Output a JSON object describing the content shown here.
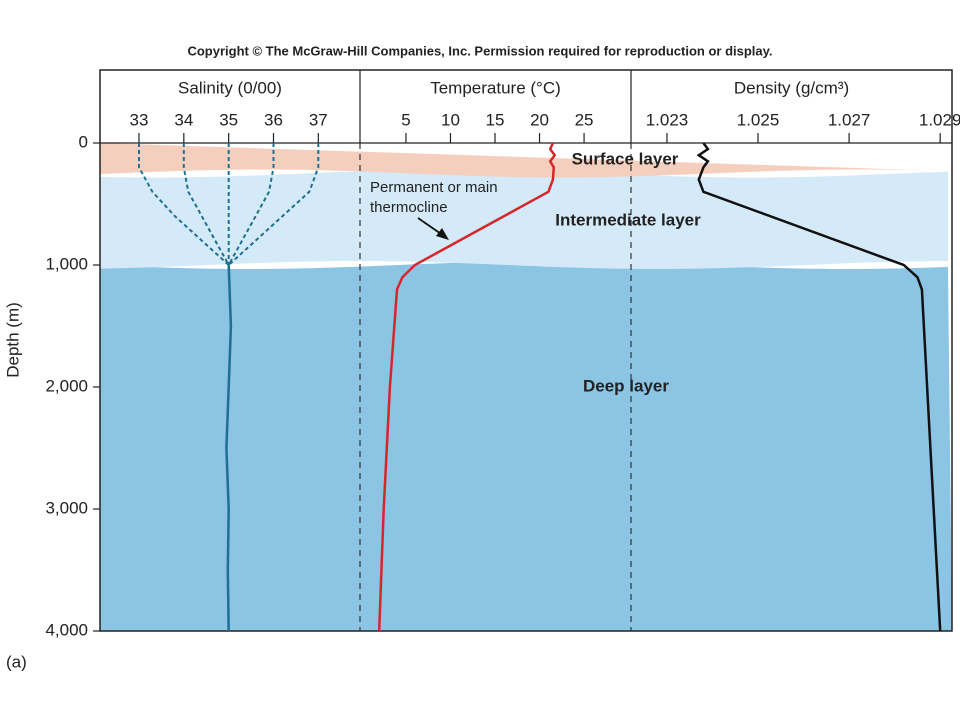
{
  "copyright": "Copyright © The McGraw-Hill Companies, Inc. Permission required for reproduction or display.",
  "panel_label": "(a)",
  "layers": [
    {
      "name": "Deep layer",
      "top": 1000,
      "bottom": 4000,
      "color": "#8cc4e3"
    },
    {
      "name": "Intermediate layer",
      "top": 250,
      "bottom": 1000,
      "color": "#d5eaf8"
    },
    {
      "name": "Surface layer",
      "top": 0,
      "bottom": 250,
      "color": "#f5cfbe"
    }
  ],
  "annotation": {
    "lines": [
      "Permanent or main",
      "thermocline"
    ]
  },
  "chart_data": [
    {
      "type": "line",
      "title": "Salinity (0/00)",
      "ylabel": "Depth (m)",
      "xlim": [
        32.13,
        37.93
      ],
      "xticks": [
        33,
        34,
        35,
        36,
        37
      ],
      "ylim": [
        0,
        4000
      ],
      "yticks": [
        0,
        {
          "value": 1000,
          "label": "1,000"
        },
        {
          "value": 2000,
          "label": "2,000"
        },
        {
          "value": 3000,
          "label": "3,000"
        },
        {
          "value": 4000,
          "label": "4,000"
        }
      ],
      "series": [
        {
          "color": "#1f6f94",
          "style": "dashed",
          "depth": [
            0,
            200,
            400,
            600,
            800,
            1000
          ],
          "values": [
            33,
            33,
            33.3,
            33.8,
            34.4,
            35
          ]
        },
        {
          "color": "#1f6f94",
          "style": "dashed",
          "depth": [
            0,
            200,
            400,
            600,
            800,
            1000
          ],
          "values": [
            34,
            34,
            34.1,
            34.4,
            34.7,
            35
          ]
        },
        {
          "color": "#1f6f94",
          "style": "dashed",
          "depth": [
            0,
            200,
            400,
            600,
            800,
            1000
          ],
          "values": [
            35,
            35,
            35,
            35,
            35,
            35
          ]
        },
        {
          "color": "#1f6f94",
          "style": "dashed",
          "depth": [
            0,
            200,
            400,
            600,
            800,
            1000
          ],
          "values": [
            36,
            36,
            35.9,
            35.6,
            35.3,
            35
          ]
        },
        {
          "color": "#1f6f94",
          "style": "dashed",
          "depth": [
            0,
            200,
            400,
            600,
            800,
            1000
          ],
          "values": [
            37,
            37,
            36.8,
            36.2,
            35.6,
            35
          ]
        },
        {
          "color": "#1f6f94",
          "style": "solid",
          "depth": [
            1000,
            1500,
            2000,
            2500,
            3000,
            3500,
            4000
          ],
          "values": [
            35,
            35.05,
            35,
            34.95,
            35,
            34.98,
            35
          ]
        }
      ]
    },
    {
      "type": "line",
      "title": "Temperature (°C)",
      "xlim": [
        -0.16,
        30.27
      ],
      "xticks": [
        5,
        10,
        15,
        20,
        25
      ],
      "ylim": [
        0,
        4000
      ],
      "series": [
        {
          "color": "#d7262b",
          "style": "solid",
          "depth": [
            0,
            50,
            100,
            150,
            200,
            300,
            400,
            700,
            1000,
            1100,
            1200,
            2000,
            3000,
            4000
          ],
          "values": [
            21.5,
            21.2,
            21.7,
            21.2,
            21.6,
            21.5,
            21,
            13.5,
            6,
            4.6,
            4,
            3.2,
            2.5,
            2
          ]
        }
      ]
    },
    {
      "type": "line",
      "title": "Density (g/cm³)",
      "xlim": [
        1.02221,
        1.02926
      ],
      "xticks": [
        1.023,
        1.025,
        1.027,
        1.029
      ],
      "ylim": [
        0,
        4000
      ],
      "series": [
        {
          "color": "#111111",
          "style": "solid",
          "depth": [
            0,
            50,
            100,
            150,
            200,
            300,
            400,
            1000,
            1100,
            1200,
            4000
          ],
          "values": [
            1.0238,
            1.0239,
            1.0237,
            1.0239,
            1.0238,
            1.0237,
            1.0238,
            1.0282,
            1.0285,
            1.0286,
            1.029
          ]
        }
      ]
    }
  ]
}
